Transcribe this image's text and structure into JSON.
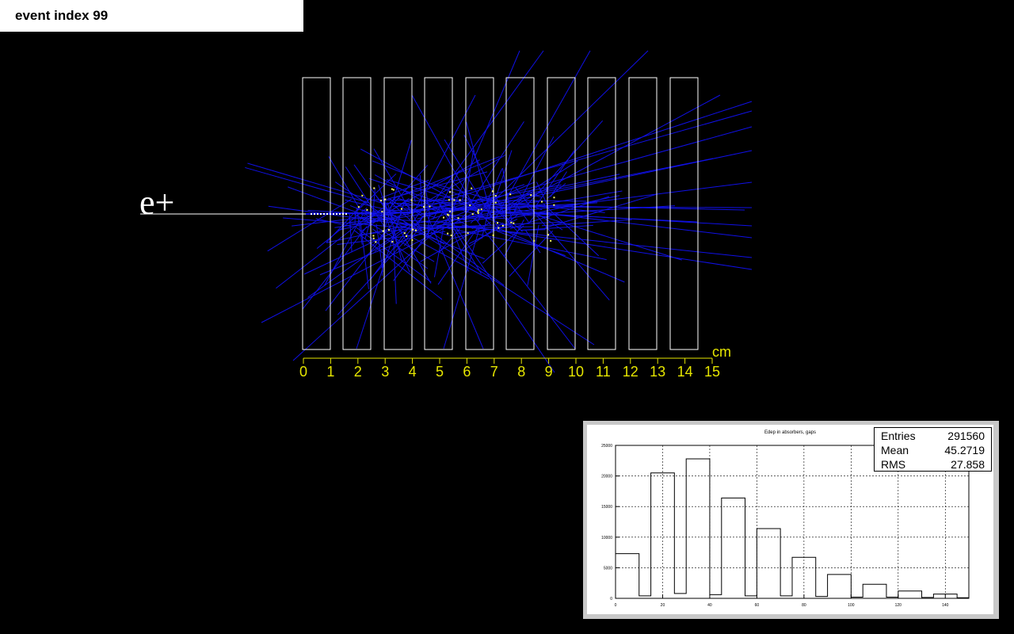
{
  "event_label": "event index 99",
  "particle_label": "e+",
  "ruler": {
    "unit": "cm",
    "ticks": [
      "0",
      "1",
      "2",
      "3",
      "4",
      "5",
      "6",
      "7",
      "8",
      "9",
      "10",
      "11",
      "12",
      "13",
      "14",
      "15"
    ]
  },
  "colors": {
    "background": "#000000",
    "tracks": "#1010e6",
    "absorbers": "#ffffff",
    "ruler": "#e6e600",
    "hits": "#ffff66"
  },
  "histogram": {
    "title": "Edep in absorbers, gaps",
    "stats": {
      "entries_label": "Entries",
      "entries": "291560",
      "mean_label": "Mean",
      "mean": "45.2719",
      "rms_label": "RMS",
      "rms": "27.858"
    },
    "chart_data": {
      "type": "bar",
      "bin_edges": [
        0,
        10,
        15,
        25,
        30,
        40,
        45,
        55,
        60,
        70,
        75,
        85,
        90,
        100,
        105,
        115,
        120,
        130,
        135,
        145,
        150
      ],
      "values": [
        7300,
        400,
        20500,
        800,
        22800,
        600,
        16400,
        400,
        11400,
        400,
        6700,
        300,
        3900,
        200,
        2300,
        200,
        1200,
        150,
        700,
        100
      ],
      "xlim": [
        0,
        150
      ],
      "ylim": [
        0,
        25000
      ],
      "x_ticks": [
        "0",
        "20",
        "40",
        "60",
        "80",
        "100",
        "120",
        "140"
      ],
      "y_ticks": [
        "0",
        "5000",
        "10000",
        "15000",
        "20000",
        "25000"
      ],
      "grid": true
    }
  }
}
